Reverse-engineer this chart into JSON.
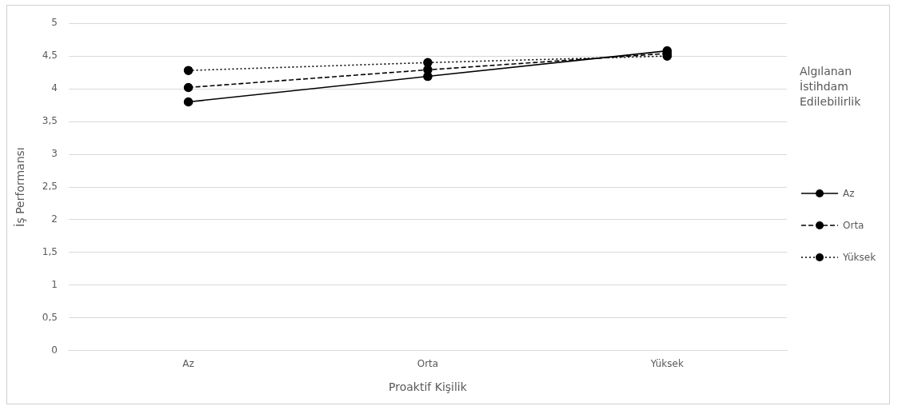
{
  "chart_data": {
    "type": "line",
    "xlabel": "Proaktif Kişilik",
    "ylabel": "İş Performansı",
    "legend_title": "Algılanan İstihdam Edilebilirlik",
    "categories": [
      "Az",
      "Orta",
      "Yüksek"
    ],
    "series": [
      {
        "name": "Az",
        "color": "#000000",
        "line_style": "solid",
        "values": [
          3.8,
          4.19,
          4.58
        ]
      },
      {
        "name": "Orta",
        "color": "#000000",
        "line_style": "dashed",
        "values": [
          4.02,
          4.29,
          4.54
        ]
      },
      {
        "name": "Yüksek",
        "color": "#000000",
        "line_style": "dotted",
        "values": [
          4.28,
          4.4,
          4.5
        ]
      }
    ],
    "ylim": [
      0,
      5
    ],
    "yticks": [
      0,
      {
        "value": 0.5,
        "label": "0,5"
      },
      1,
      {
        "value": 1.5,
        "label": "1,5"
      },
      2,
      {
        "value": 2.5,
        "label": "2,5"
      },
      3,
      {
        "value": 3.5,
        "label": "3,5"
      },
      4,
      {
        "value": 4.5,
        "label": "4,5"
      },
      5
    ],
    "grid": "y",
    "legend": "right",
    "marker": "circle"
  }
}
